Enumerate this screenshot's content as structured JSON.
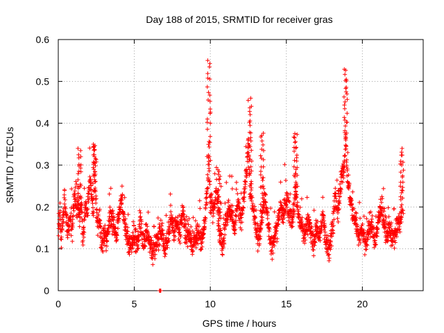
{
  "chart_data": {
    "type": "scatter",
    "title": "Day 188 of 2015, SRMTID for receiver gras",
    "xlabel": "GPS time / hours",
    "ylabel": "SRMTID / TECUs",
    "xlim": [
      0,
      24
    ],
    "ylim": [
      0,
      0.6
    ],
    "x_ticks": [
      0,
      5,
      10,
      15,
      20
    ],
    "x_tick_labels": [
      "0",
      "5",
      "10",
      "15",
      "20"
    ],
    "y_ticks": [
      0,
      0.1,
      0.2,
      0.3,
      0.4,
      0.5,
      0.6
    ],
    "y_tick_labels": [
      "0",
      "0.1",
      "0.2",
      "0.3",
      "0.4",
      "0.5",
      "0.6"
    ],
    "grid": true,
    "marker": "+",
    "series_color": "#ff0000",
    "sample_interval_hours": 0.02,
    "series": [
      {
        "name": "SRMTID",
        "description": "Sampled SRMTID values (TECU) vs GPS time, approximate envelope of the plotted points",
        "x": [
          0.0,
          0.1,
          0.2,
          0.3,
          0.4,
          0.5,
          0.6,
          0.7,
          0.8,
          0.9,
          1.0,
          1.1,
          1.2,
          1.3,
          1.4,
          1.5,
          1.6,
          1.7,
          1.8,
          1.9,
          2.0,
          2.1,
          2.2,
          2.3,
          2.4,
          2.5,
          2.6,
          2.7,
          2.8,
          2.9,
          3.0,
          3.2,
          3.4,
          3.6,
          3.8,
          4.0,
          4.2,
          4.4,
          4.6,
          4.8,
          5.0,
          5.2,
          5.4,
          5.6,
          5.8,
          6.0,
          6.2,
          6.4,
          6.6,
          6.8,
          7.0,
          7.2,
          7.4,
          7.6,
          7.8,
          8.0,
          8.2,
          8.4,
          8.6,
          8.8,
          9.0,
          9.2,
          9.4,
          9.6,
          9.7,
          9.8,
          9.9,
          10.0,
          10.2,
          10.4,
          10.6,
          10.8,
          11.0,
          11.2,
          11.4,
          11.6,
          11.8,
          12.0,
          12.2,
          12.4,
          12.5,
          12.6,
          12.8,
          13.0,
          13.2,
          13.4,
          13.6,
          13.8,
          14.0,
          14.2,
          14.4,
          14.6,
          14.8,
          15.0,
          15.2,
          15.4,
          15.6,
          15.8,
          16.0,
          16.2,
          16.4,
          16.6,
          16.8,
          17.0,
          17.2,
          17.4,
          17.6,
          17.8,
          18.0,
          18.2,
          18.4,
          18.6,
          18.8,
          18.9,
          19.0,
          19.2,
          19.4,
          19.6,
          19.8,
          20.0,
          20.2,
          20.4,
          20.6,
          20.8,
          21.0,
          21.2,
          21.4,
          21.6,
          21.8,
          22.0,
          22.2,
          22.4,
          22.6
        ],
        "y": [
          0.13,
          0.2,
          0.12,
          0.17,
          0.22,
          0.19,
          0.12,
          0.15,
          0.18,
          0.14,
          0.2,
          0.23,
          0.18,
          0.22,
          0.17,
          0.25,
          0.12,
          0.16,
          0.21,
          0.19,
          0.24,
          0.27,
          0.22,
          0.19,
          0.28,
          0.2,
          0.15,
          0.17,
          0.13,
          0.11,
          0.14,
          0.12,
          0.18,
          0.16,
          0.13,
          0.19,
          0.22,
          0.15,
          0.12,
          0.1,
          0.13,
          0.11,
          0.16,
          0.1,
          0.14,
          0.12,
          0.09,
          0.11,
          0.13,
          0.15,
          0.1,
          0.12,
          0.18,
          0.14,
          0.16,
          0.13,
          0.19,
          0.12,
          0.15,
          0.1,
          0.12,
          0.14,
          0.11,
          0.15,
          0.2,
          0.24,
          0.3,
          0.22,
          0.19,
          0.25,
          0.14,
          0.1,
          0.16,
          0.2,
          0.18,
          0.15,
          0.21,
          0.17,
          0.22,
          0.3,
          0.38,
          0.25,
          0.2,
          0.15,
          0.12,
          0.18,
          0.22,
          0.16,
          0.1,
          0.13,
          0.15,
          0.2,
          0.18,
          0.22,
          0.19,
          0.16,
          0.24,
          0.18,
          0.15,
          0.13,
          0.17,
          0.14,
          0.11,
          0.15,
          0.13,
          0.18,
          0.12,
          0.1,
          0.14,
          0.22,
          0.18,
          0.26,
          0.3,
          0.36,
          0.28,
          0.22,
          0.18,
          0.16,
          0.13,
          0.15,
          0.11,
          0.14,
          0.16,
          0.12,
          0.15,
          0.2,
          0.17,
          0.13,
          0.15,
          0.12,
          0.14,
          0.16,
          0.18
        ]
      }
    ],
    "notable_spikes": [
      {
        "x": 9.9,
        "y": 0.55
      },
      {
        "x": 12.6,
        "y": 0.46
      },
      {
        "x": 18.9,
        "y": 0.53
      },
      {
        "x": 15.6,
        "y": 0.38
      },
      {
        "x": 13.4,
        "y": 0.38
      },
      {
        "x": 10.6,
        "y": 0.29
      },
      {
        "x": 2.4,
        "y": 0.35
      },
      {
        "x": 1.4,
        "y": 0.34
      },
      {
        "x": 22.6,
        "y": 0.34
      }
    ],
    "zero_marker": {
      "x": 6.7,
      "y": 0.0
    }
  }
}
